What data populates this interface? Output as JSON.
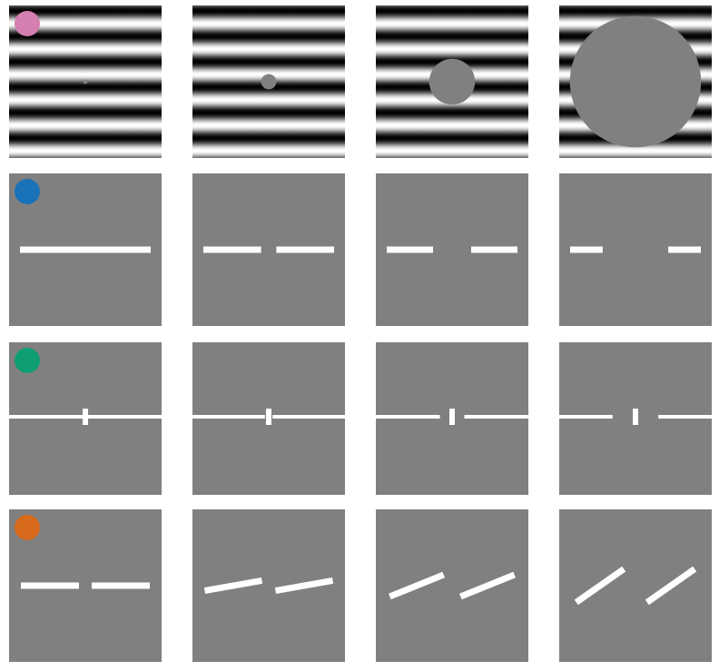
{
  "colors": {
    "background": "#ffffff",
    "panel_gray": "#808080",
    "bar_white": "#ffffff",
    "stripe_dark": "#000000",
    "stripe_light": "#ffffff"
  },
  "rows": [
    {
      "id": "grating-occluder",
      "marker_color": "#d47fb0",
      "panels": [
        {
          "kind": "grating",
          "occluder_diameter": 0.03
        },
        {
          "kind": "grating",
          "occluder_diameter": 0.1
        },
        {
          "kind": "grating",
          "occluder_diameter": 0.3
        },
        {
          "kind": "grating",
          "occluder_diameter": 0.86
        }
      ]
    },
    {
      "id": "collinear-gap",
      "marker_color": "#1a72b8",
      "panels": [
        {
          "kind": "gap-bars",
          "gap": 0.0
        },
        {
          "kind": "gap-bars",
          "gap": 0.1
        },
        {
          "kind": "gap-bars",
          "gap": 0.25
        },
        {
          "kind": "gap-bars",
          "gap": 0.43
        }
      ]
    },
    {
      "id": "line-with-flanker",
      "marker_color": "#0f9e73",
      "panels": [
        {
          "kind": "flanker-line",
          "gap": 0.0
        },
        {
          "kind": "flanker-line",
          "gap": 0.05
        },
        {
          "kind": "flanker-line",
          "gap": 0.16
        },
        {
          "kind": "flanker-line",
          "gap": 0.3
        }
      ]
    },
    {
      "id": "tilted-pair",
      "marker_color": "#d86a1c",
      "panels": [
        {
          "kind": "tilted-bars",
          "angle_deg": 0
        },
        {
          "kind": "tilted-bars",
          "angle_deg": -10
        },
        {
          "kind": "tilted-bars",
          "angle_deg": -22
        },
        {
          "kind": "tilted-bars",
          "angle_deg": -35
        }
      ]
    }
  ]
}
